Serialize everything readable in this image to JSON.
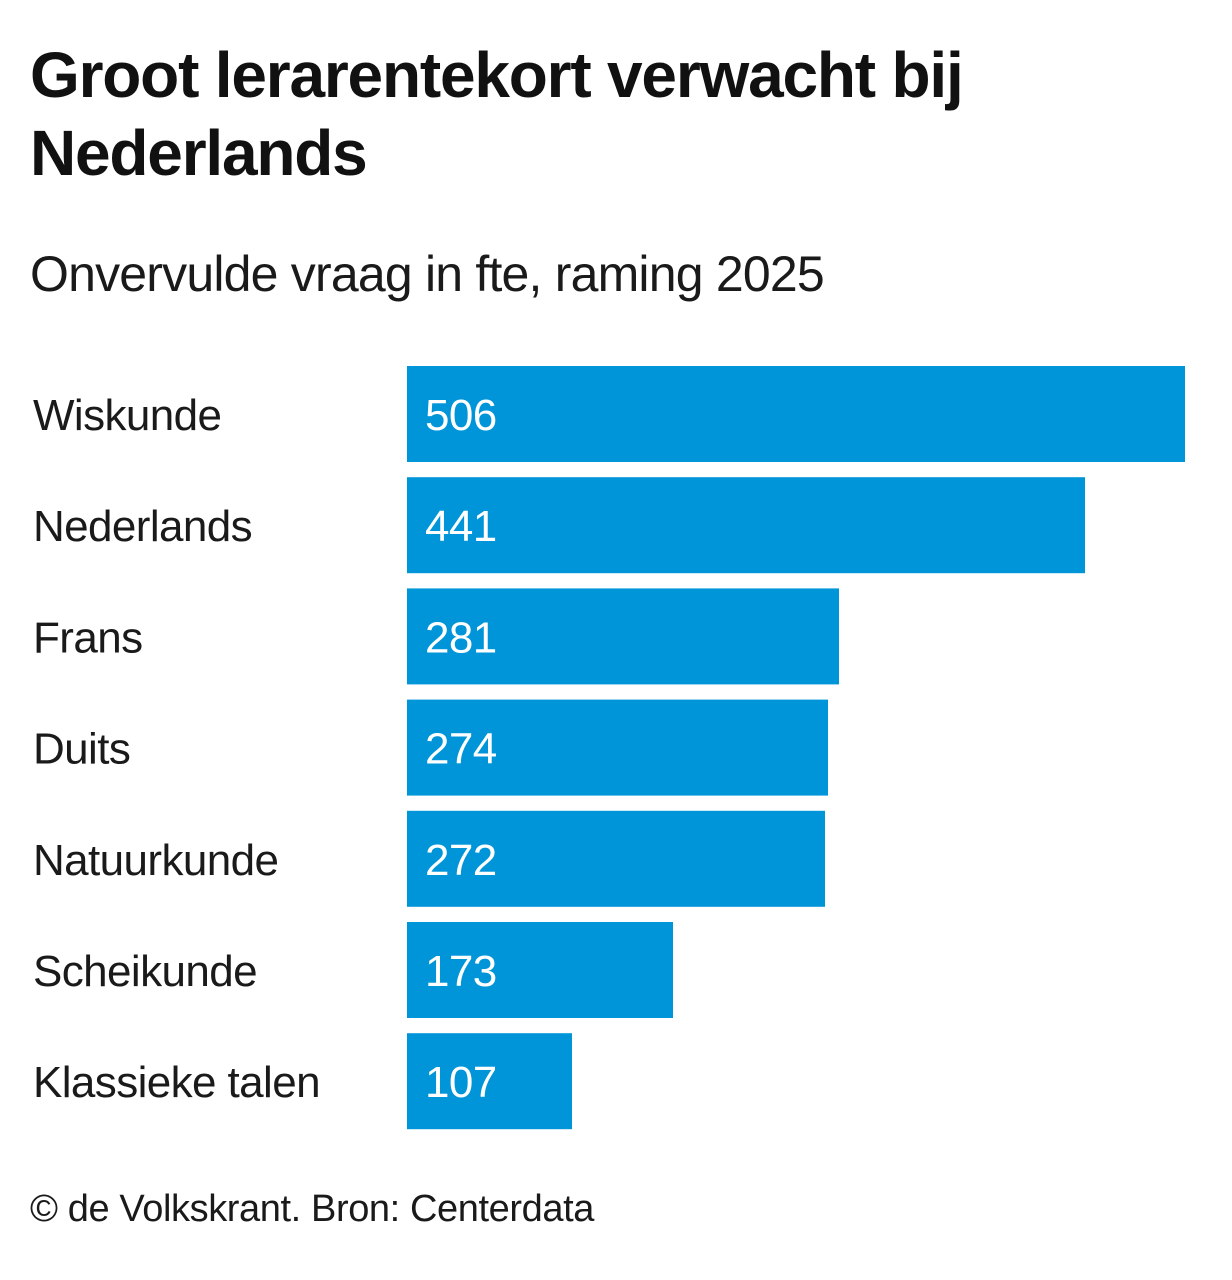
{
  "header": {
    "title": "Groot lerarentekort verwacht bij Nederlands",
    "subtitle": "Onvervulde vraag in fte, raming 2025"
  },
  "footer": {
    "credit": "© de Volkskrant. Bron: Centerdata"
  },
  "colors": {
    "bar": "#0095D9",
    "bar_label": "#FFFFFF",
    "text": "#1A1A1A",
    "background": "#FFFFFF"
  },
  "chart_data": {
    "type": "bar",
    "orientation": "horizontal",
    "title": "Groot lerarentekort verwacht bij Nederlands",
    "subtitle": "Onvervulde vraag in fte, raming 2025",
    "xlabel": "",
    "ylabel": "",
    "unit": "fte",
    "categories": [
      "Wiskunde",
      "Nederlands",
      "Frans",
      "Duits",
      "Natuurkunde",
      "Scheikunde",
      "Klassieke talen"
    ],
    "values": [
      506,
      441,
      281,
      274,
      272,
      173,
      107
    ],
    "xlim": [
      0,
      506
    ],
    "grid": false,
    "legend": "none",
    "data_labels": "inside-left",
    "source": "Centerdata"
  }
}
